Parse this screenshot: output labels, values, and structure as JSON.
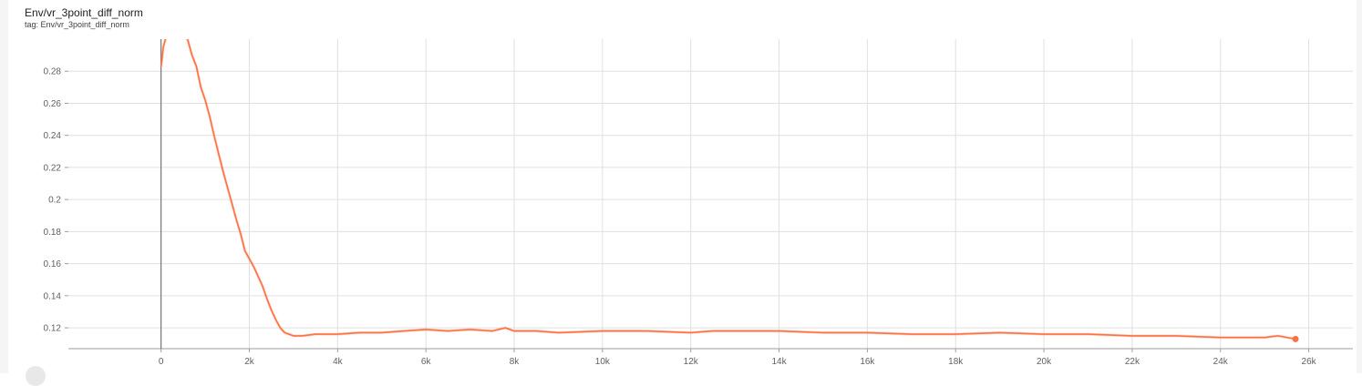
{
  "header": {
    "title": "Env/vr_3point_diff_norm",
    "tag": "tag: Env/vr_3point_diff_norm"
  },
  "colors": {
    "series": "#ff7043",
    "grid": "#e0e0e0",
    "axis": "#9e9e9e"
  },
  "chart_data": {
    "type": "line",
    "xlim": [
      -2100,
      27000
    ],
    "ylim": [
      0.107,
      0.3
    ],
    "grid": true,
    "x_ticks": [
      0,
      2000,
      4000,
      6000,
      8000,
      10000,
      12000,
      14000,
      16000,
      18000,
      20000,
      22000,
      24000,
      26000
    ],
    "x_tick_labels": [
      "0",
      "2k",
      "4k",
      "6k",
      "8k",
      "10k",
      "12k",
      "14k",
      "16k",
      "18k",
      "20k",
      "22k",
      "24k",
      "26k"
    ],
    "y_ticks": [
      0.12,
      0.14,
      0.16,
      0.18,
      0.2,
      0.22,
      0.24,
      0.26,
      0.28
    ],
    "y_tick_labels": [
      "0.12",
      "0.14",
      "0.16",
      "0.18",
      "0.2",
      "0.22",
      "0.24",
      "0.26",
      "0.28"
    ],
    "series": [
      {
        "x": [
          0,
          20,
          50,
          100,
          150,
          200,
          300,
          400,
          500,
          600,
          700,
          800,
          900,
          1000,
          1100,
          1200,
          1300,
          1400,
          1500,
          1600,
          1700,
          1800,
          1900,
          2000,
          2100,
          2200,
          2300,
          2400,
          2500,
          2600,
          2700,
          2800,
          2900,
          3000,
          3200,
          3500,
          4000,
          4500,
          5000,
          5500,
          6000,
          6500,
          7000,
          7500,
          7800,
          8000,
          8500,
          9000,
          10000,
          11000,
          12000,
          12500,
          13000,
          14000,
          15000,
          16000,
          17000,
          18000,
          19000,
          20000,
          21000,
          22000,
          23000,
          24000,
          24500,
          25000,
          25300,
          25700
        ],
        "y": [
          0.283,
          0.287,
          0.295,
          0.3,
          0.302,
          0.304,
          0.304,
          0.303,
          0.302,
          0.3,
          0.29,
          0.283,
          0.27,
          0.262,
          0.252,
          0.24,
          0.229,
          0.218,
          0.208,
          0.198,
          0.188,
          0.179,
          0.168,
          0.163,
          0.158,
          0.152,
          0.146,
          0.138,
          0.131,
          0.125,
          0.12,
          0.117,
          0.116,
          0.115,
          0.115,
          0.116,
          0.116,
          0.117,
          0.117,
          0.118,
          0.119,
          0.118,
          0.119,
          0.118,
          0.12,
          0.118,
          0.118,
          0.117,
          0.118,
          0.118,
          0.117,
          0.118,
          0.118,
          0.118,
          0.117,
          0.117,
          0.116,
          0.116,
          0.117,
          0.116,
          0.116,
          0.115,
          0.115,
          0.114,
          0.114,
          0.114,
          0.115,
          0.113
        ]
      }
    ]
  }
}
